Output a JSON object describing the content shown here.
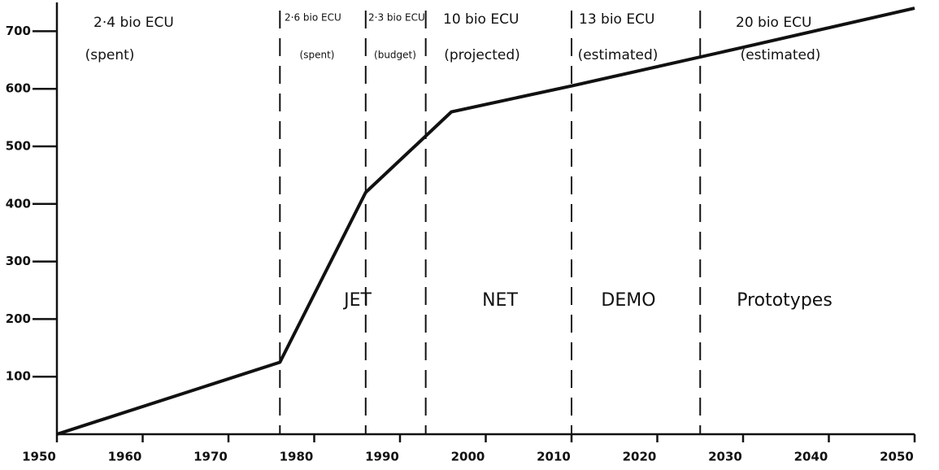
{
  "chart_data": {
    "type": "line",
    "x": [
      1950,
      1976,
      1986,
      1996,
      2010,
      2030,
      2050
    ],
    "series": [
      {
        "color": "#111111",
        "values": [
          0,
          125,
          420,
          560,
          605,
          672,
          740
        ]
      }
    ],
    "xlim": [
      1950,
      2050
    ],
    "ylim": [
      0,
      750
    ],
    "xticks": [
      1950,
      1960,
      1970,
      1980,
      1990,
      2000,
      2010,
      2020,
      2030,
      2040,
      2050
    ],
    "yticks": [
      100,
      200,
      300,
      400,
      500,
      600,
      700
    ],
    "dividers": [
      1976,
      1986,
      1993,
      2010,
      2025
    ],
    "periods": [
      {
        "cost": "2·4 bio ECU",
        "status": "(spent)"
      },
      {
        "cost": "2·6 bio ECU",
        "status": "(spent)"
      },
      {
        "cost": "2·3 bio ECU",
        "status": "(budget)"
      },
      {
        "cost": "10 bio ECU",
        "status": "(projected)"
      },
      {
        "cost": "13 bio ECU",
        "status": "(estimated)"
      },
      {
        "cost": "20 bio ECU",
        "status": "(estimated)"
      }
    ],
    "phases": [
      "JET",
      "NET",
      "DEMO",
      "Prototypes"
    ]
  }
}
